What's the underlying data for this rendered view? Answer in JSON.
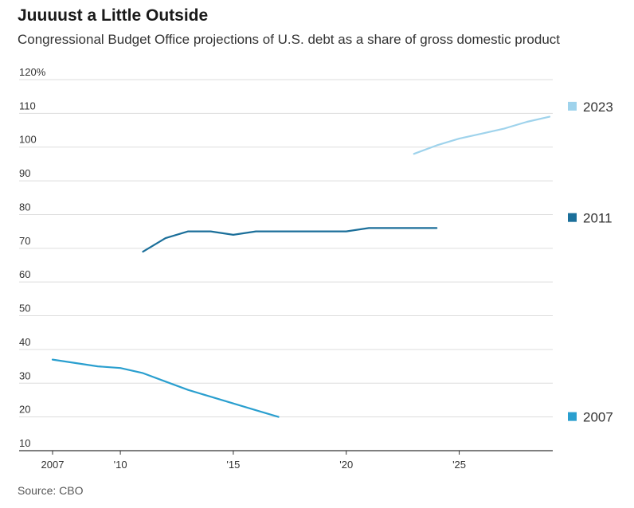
{
  "title": "Juuuust a Little Outside",
  "subtitle": "Congressional Budget Office projections of U.S. debt as a share of gross domestic product",
  "source": "Source: CBO",
  "chart_data": {
    "type": "line",
    "title": "Juuuust a Little Outside",
    "subtitle": "Congressional Budget Office projections of U.S. debt as a share of gross domestic product",
    "xlabel": "",
    "ylabel": "",
    "xlim": [
      2007,
      2029
    ],
    "ylim": [
      10,
      120
    ],
    "grid": true,
    "legend_position": "right",
    "x_ticks": [
      {
        "value": 2007,
        "label": "2007"
      },
      {
        "value": 2010,
        "label": "'10"
      },
      {
        "value": 2015,
        "label": "'15"
      },
      {
        "value": 2020,
        "label": "'20"
      },
      {
        "value": 2025,
        "label": "'25"
      }
    ],
    "y_ticks": [
      {
        "value": 120,
        "label": "120%"
      },
      {
        "value": 110,
        "label": "110"
      },
      {
        "value": 100,
        "label": "100"
      },
      {
        "value": 90,
        "label": "90"
      },
      {
        "value": 80,
        "label": "80"
      },
      {
        "value": 70,
        "label": "70"
      },
      {
        "value": 60,
        "label": "60"
      },
      {
        "value": 50,
        "label": "50"
      },
      {
        "value": 40,
        "label": "40"
      },
      {
        "value": 30,
        "label": "30"
      },
      {
        "value": 20,
        "label": "20"
      },
      {
        "value": 10,
        "label": "10"
      }
    ],
    "series": [
      {
        "name": "2023",
        "color": "#9fd3ec",
        "legend_y": 112,
        "x": [
          2023,
          2024,
          2025,
          2026,
          2027,
          2028,
          2029
        ],
        "values": [
          98,
          100.5,
          102.5,
          104,
          105.5,
          107.5,
          109
        ]
      },
      {
        "name": "2011",
        "color": "#1b6f9a",
        "legend_y": 79,
        "x": [
          2011,
          2012,
          2013,
          2014,
          2015,
          2016,
          2017,
          2018,
          2019,
          2020,
          2021,
          2022,
          2023,
          2024
        ],
        "values": [
          69,
          73,
          75,
          75,
          74,
          75,
          75,
          75,
          75,
          75,
          76,
          76,
          76,
          76
        ]
      },
      {
        "name": "2007",
        "color": "#2a9fcf",
        "legend_y": 20,
        "x": [
          2007,
          2008,
          2009,
          2010,
          2011,
          2012,
          2013,
          2014,
          2015,
          2016,
          2017
        ],
        "values": [
          37,
          36,
          35,
          34.5,
          33,
          30.5,
          28,
          26,
          24,
          22,
          20
        ]
      }
    ]
  }
}
